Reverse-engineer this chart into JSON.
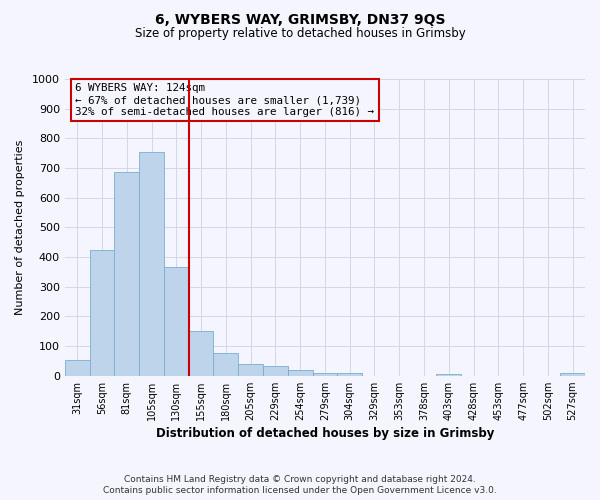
{
  "title": "6, WYBERS WAY, GRIMSBY, DN37 9QS",
  "subtitle": "Size of property relative to detached houses in Grimsby",
  "xlabel": "Distribution of detached houses by size in Grimsby",
  "ylabel": "Number of detached properties",
  "bar_labels": [
    "31sqm",
    "56sqm",
    "81sqm",
    "105sqm",
    "130sqm",
    "155sqm",
    "180sqm",
    "205sqm",
    "229sqm",
    "254sqm",
    "279sqm",
    "304sqm",
    "329sqm",
    "353sqm",
    "378sqm",
    "403sqm",
    "428sqm",
    "453sqm",
    "477sqm",
    "502sqm",
    "527sqm"
  ],
  "bar_values": [
    52,
    425,
    685,
    755,
    365,
    152,
    75,
    40,
    33,
    18,
    10,
    8,
    0,
    0,
    0,
    5,
    0,
    0,
    0,
    0,
    8
  ],
  "bar_color": "#bdd4ea",
  "bar_edge_color": "#7aadd4",
  "vline_color": "#cc0000",
  "ylim": [
    0,
    1000
  ],
  "yticks": [
    0,
    100,
    200,
    300,
    400,
    500,
    600,
    700,
    800,
    900,
    1000
  ],
  "annotation_title": "6 WYBERS WAY: 124sqm",
  "annotation_line1": "← 67% of detached houses are smaller (1,739)",
  "annotation_line2": "32% of semi-detached houses are larger (816) →",
  "annotation_box_color": "#cc0000",
  "footer_line1": "Contains HM Land Registry data © Crown copyright and database right 2024.",
  "footer_line2": "Contains public sector information licensed under the Open Government Licence v3.0.",
  "bg_color": "#f5f5ff",
  "grid_color": "#d0d8e8"
}
